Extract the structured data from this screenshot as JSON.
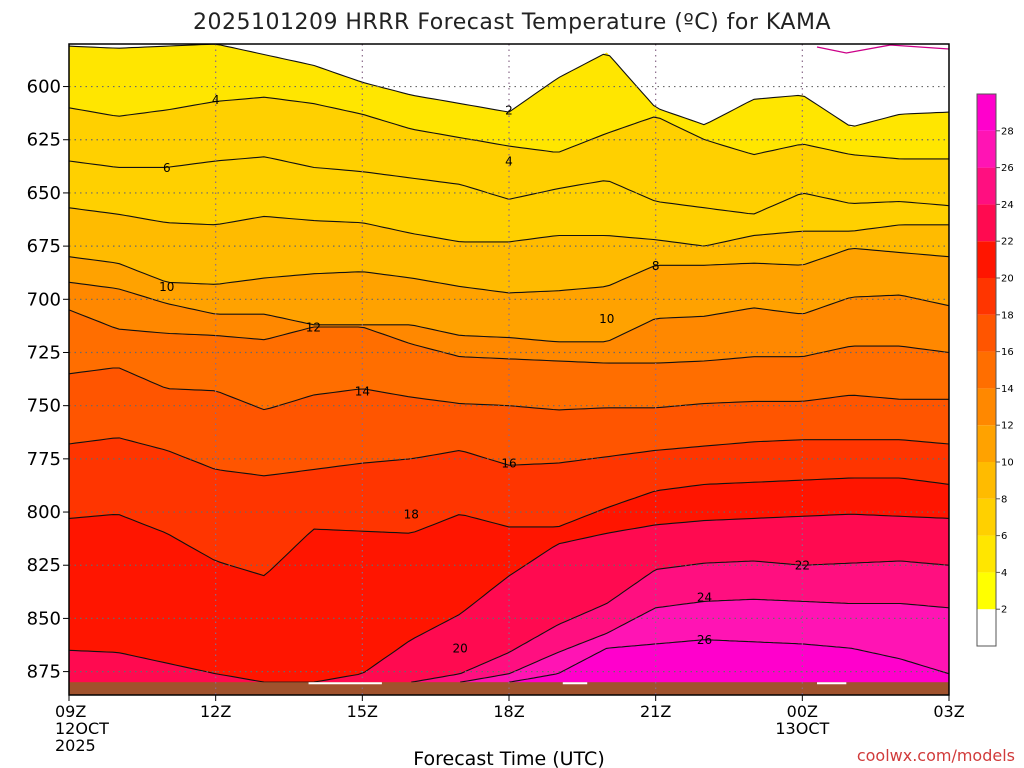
{
  "chart_data": {
    "type": "filled-contour",
    "title": "2025101209 HRRR Forecast Temperature (ºC) for KAMA",
    "xlabel": "Forecast Time (UTC)",
    "ylabel": "",
    "watermark": "coolwx.com/models",
    "x_hours": [
      0,
      3,
      6,
      9,
      12,
      15,
      18
    ],
    "x_tick_labels": [
      [
        "09Z",
        "12OCT",
        "2025"
      ],
      [
        "12Z"
      ],
      [
        "15Z"
      ],
      [
        "18Z"
      ],
      [
        "21Z"
      ],
      [
        "00Z",
        "13OCT"
      ],
      [
        "03Z"
      ]
    ],
    "y_ticks": [
      600,
      625,
      650,
      675,
      700,
      725,
      750,
      775,
      800,
      825,
      850,
      875
    ],
    "y_tick_labels": [
      "600",
      "625",
      "650",
      "675",
      "700",
      "725",
      "750",
      "775",
      "800",
      "825",
      "850",
      "875"
    ],
    "ylim": [
      580,
      886
    ],
    "xlim": [
      0,
      18
    ],
    "surface_pressure_hpa": 880,
    "levels": [
      2,
      4,
      6,
      8,
      10,
      12,
      14,
      16,
      18,
      20,
      22,
      24,
      26,
      28
    ],
    "colorbar_labels": [
      "2",
      "4",
      "6",
      "8",
      "10",
      "12",
      "14",
      "16",
      "18",
      "20",
      "22",
      "24",
      "26",
      "28"
    ],
    "colors": [
      "#ffffff",
      "#ffff00",
      "#ffe600",
      "#ffd000",
      "#ffbb00",
      "#ffa200",
      "#ff8800",
      "#ff6e00",
      "#ff5500",
      "#ff3500",
      "#ff1500",
      "#ff0a50",
      "#ff0f80",
      "#ff14b4",
      "#ff00cc"
    ],
    "ground_color": "#a0522d",
    "contours": [
      {
        "level": 2,
        "label": "2",
        "label_hour": 9.0,
        "label_p": 611,
        "x": [
          0,
          1,
          3,
          5,
          6,
          7,
          9,
          10,
          11,
          12,
          13,
          14,
          15,
          16,
          17,
          18
        ],
        "p": [
          581,
          582,
          580,
          590,
          598,
          604,
          612,
          596,
          584,
          610,
          618,
          606,
          604,
          619,
          613,
          612
        ]
      },
      {
        "level": 4,
        "label": "4",
        "label_hour": 3.0,
        "label_p": 606,
        "x": [
          0,
          1,
          2,
          3,
          4,
          5,
          6,
          7,
          8,
          9,
          10,
          11,
          12,
          13,
          14,
          15,
          16,
          17,
          18
        ],
        "p": [
          610,
          614,
          611,
          607,
          605,
          608,
          613,
          620,
          624,
          628,
          631,
          622,
          614,
          625,
          632,
          627,
          632,
          634,
          634
        ]
      },
      {
        "level": 4,
        "label": "4",
        "label_hour": 9.0,
        "label_p": 635,
        "x": [
          0,
          1,
          2,
          3,
          4,
          5,
          6,
          7,
          8,
          9,
          10,
          11,
          12,
          13,
          14,
          15,
          16,
          17,
          18
        ],
        "p": [
          635,
          638,
          638,
          635,
          633,
          638,
          640,
          643,
          646,
          653,
          648,
          644,
          654,
          657,
          660,
          650,
          655,
          654,
          656
        ]
      },
      {
        "level": 6,
        "label": "6",
        "label_hour": 2.0,
        "label_p": 638,
        "x": [
          0,
          1,
          2,
          3,
          4,
          5,
          6,
          7,
          8,
          9,
          10,
          11,
          12,
          13,
          14,
          15,
          16,
          17,
          18
        ],
        "p": [
          657,
          660,
          664,
          665,
          661,
          663,
          664,
          669,
          673,
          673,
          670,
          670,
          672,
          675,
          670,
          668,
          668,
          665,
          665
        ]
      },
      {
        "level": 8,
        "label": "8",
        "label_hour": 12.0,
        "label_p": 684,
        "x": [
          0,
          1,
          2,
          3,
          4,
          5,
          6,
          7,
          8,
          9,
          10,
          11,
          12,
          13,
          14,
          15,
          16,
          17,
          18
        ],
        "p": [
          680,
          683,
          692,
          693,
          690,
          688,
          687,
          690,
          694,
          697,
          696,
          694,
          684,
          684,
          683,
          684,
          676,
          678,
          680
        ]
      },
      {
        "level": 10,
        "label": "10",
        "label_hour": 2.0,
        "label_p": 694,
        "x": [
          0,
          1,
          2,
          3,
          4,
          5,
          6,
          7,
          8,
          9,
          10,
          11,
          12,
          13,
          14,
          15,
          16,
          17,
          18
        ],
        "p": [
          692,
          695,
          702,
          707,
          707,
          712,
          712,
          712,
          717,
          718,
          720,
          720,
          709,
          708,
          704,
          707,
          699,
          698,
          703
        ]
      },
      {
        "level": 10,
        "label": "10",
        "label_hour": 11.0,
        "label_p": 709,
        "x": [
          0,
          0.001
        ],
        "p": [
          709,
          709
        ]
      },
      {
        "level": 12,
        "label": "12",
        "label_hour": 5.0,
        "label_p": 713,
        "x": [
          0,
          1,
          2,
          3,
          4,
          5,
          6,
          7,
          8,
          9,
          10,
          11,
          12,
          13,
          14,
          15,
          16,
          17,
          18
        ],
        "p": [
          705,
          714,
          716,
          717,
          719,
          713,
          713,
          721,
          727,
          728,
          729,
          730,
          730,
          729,
          727,
          727,
          722,
          722,
          725
        ]
      },
      {
        "level": 14,
        "label": "14",
        "label_hour": 6.0,
        "label_p": 743,
        "x": [
          0,
          1,
          2,
          3,
          4,
          5,
          6,
          7,
          8,
          9,
          10,
          11,
          12,
          13,
          14,
          15,
          16,
          17,
          18
        ],
        "p": [
          735,
          732,
          742,
          743,
          752,
          745,
          742,
          746,
          749,
          750,
          752,
          751,
          751,
          749,
          748,
          748,
          745,
          747,
          747
        ]
      },
      {
        "level": 16,
        "label": "16",
        "label_hour": 9.0,
        "label_p": 777,
        "x": [
          0,
          1,
          2,
          3,
          4,
          5,
          6,
          7,
          8,
          9,
          10,
          11,
          12,
          13,
          14,
          15,
          16,
          17,
          18
        ],
        "p": [
          768,
          765,
          771,
          780,
          783,
          780,
          777,
          775,
          771,
          778,
          777,
          774,
          771,
          769,
          767,
          766,
          766,
          766,
          768
        ]
      },
      {
        "level": 18,
        "label": "18",
        "label_hour": 7.0,
        "label_p": 801,
        "x": [
          0,
          1,
          2,
          3,
          4,
          5,
          6,
          7,
          8,
          9,
          10,
          11,
          12,
          13,
          14,
          15,
          16,
          17,
          18
        ],
        "p": [
          803,
          801,
          810,
          823,
          830,
          808,
          809,
          810,
          801,
          807,
          807,
          798,
          790,
          787,
          786,
          785,
          784,
          784,
          787
        ]
      },
      {
        "level": 20,
        "label": "20",
        "label_hour": 8.0,
        "label_p": 864,
        "x": [
          0,
          1,
          2,
          3,
          4,
          5,
          6,
          7,
          8,
          9,
          10,
          11,
          12,
          13,
          14,
          15,
          16,
          17,
          18
        ],
        "p": [
          865,
          866,
          871,
          876,
          880,
          880,
          876,
          860,
          848,
          830,
          815,
          810,
          806,
          804,
          803,
          802,
          801,
          802,
          803
        ]
      },
      {
        "level": 22,
        "label": "22",
        "label_hour": 15.0,
        "label_p": 825,
        "x": [
          7,
          8,
          9,
          10,
          11,
          12,
          13,
          14,
          15,
          16,
          17,
          18
        ],
        "p": [
          880,
          876,
          866,
          853,
          843,
          827,
          824,
          823,
          825,
          824,
          823,
          825
        ]
      },
      {
        "level": 24,
        "label": "24",
        "label_hour": 13.0,
        "label_p": 840,
        "x": [
          8,
          9,
          10,
          11,
          12,
          13,
          14,
          15,
          16,
          17,
          18
        ],
        "p": [
          880,
          876,
          866,
          857,
          845,
          842,
          841,
          842,
          843,
          843,
          845
        ]
      },
      {
        "level": 26,
        "label": "26",
        "label_hour": 13.0,
        "label_p": 860,
        "x": [
          9,
          10,
          11,
          12,
          13,
          14,
          15,
          16,
          17,
          18
        ],
        "p": [
          880,
          876,
          864,
          862,
          860,
          861,
          862,
          864,
          869,
          876
        ]
      }
    ]
  }
}
